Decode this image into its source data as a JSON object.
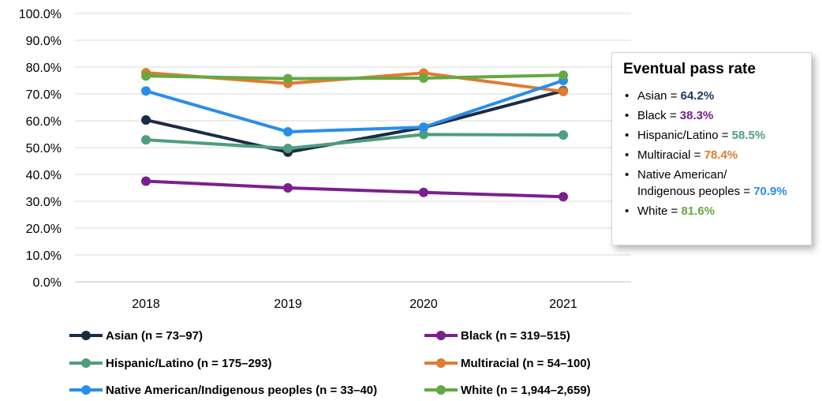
{
  "chart_data": {
    "type": "line",
    "categories": [
      "2018",
      "2019",
      "2020",
      "2021"
    ],
    "y_ticks": [
      "0.0%",
      "10.0%",
      "20.0%",
      "30.0%",
      "40.0%",
      "50.0%",
      "60.0%",
      "70.0%",
      "80.0%",
      "90.0%",
      "100.0%"
    ],
    "ylim": [
      0,
      100
    ],
    "grid": true,
    "legend_position": "bottom",
    "series": [
      {
        "name": "Asian (n = 73–97)",
        "color": "#1a2b45",
        "values": [
          60.3,
          48.3,
          57.5,
          71.2
        ]
      },
      {
        "name": "Black (n = 319–515)",
        "color": "#7b1f8e",
        "values": [
          37.5,
          35.0,
          33.3,
          31.7
        ]
      },
      {
        "name": "Hispanic/Latino (n = 175–293)",
        "color": "#4e9e7e",
        "values": [
          52.9,
          49.7,
          54.9,
          54.7
        ]
      },
      {
        "name": "Multiracial (n = 54–100)",
        "color": "#e07b2f",
        "values": [
          77.9,
          73.9,
          77.8,
          70.9
        ]
      },
      {
        "name": "Native American/Indigenous peoples (n = 33–40)",
        "color": "#2a8ee8",
        "values": [
          71.1,
          55.9,
          57.6,
          75.0
        ]
      },
      {
        "name": "White (n = 1,944–2,659)",
        "color": "#64a843",
        "values": [
          76.7,
          75.7,
          75.9,
          77.0
        ]
      }
    ]
  },
  "callout": {
    "title": "Eventual pass rate",
    "items": [
      {
        "label": "Asian = ",
        "value": "64.2%",
        "color": "#1a3a5c"
      },
      {
        "label": "Black = ",
        "value": "38.3%",
        "color": "#7b1f8e"
      },
      {
        "label": "Hispanic/Latino = ",
        "value": "58.5%",
        "color": "#4e9e7e"
      },
      {
        "label": "Multiracial = ",
        "value": "78.4%",
        "color": "#e07b2f"
      },
      {
        "label_line1": "Native American/",
        "label": "Indigenous peoples = ",
        "value": "70.9%",
        "color": "#2a8ee8"
      },
      {
        "label": "White = ",
        "value": "81.6%",
        "color": "#64a843"
      }
    ]
  }
}
